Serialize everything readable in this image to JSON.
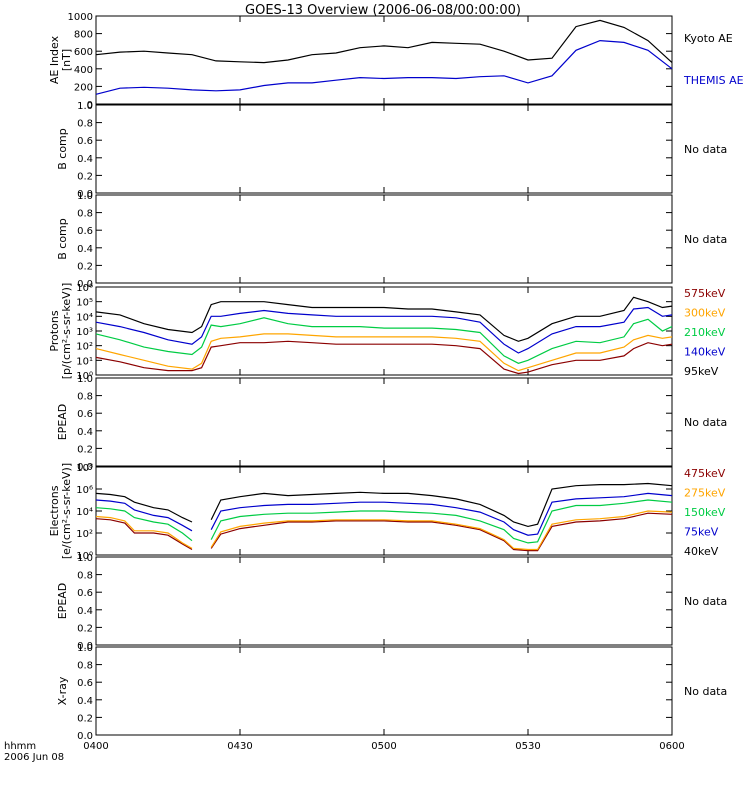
{
  "title": "GOES-13 Overview (2006-06-08/00:00:00)",
  "x_axis": {
    "ticks": [
      "0400",
      "0430",
      "0500",
      "0530",
      "0600"
    ],
    "label_line1": "hhmm",
    "label_line2": "2006 Jun 08"
  },
  "chart_data": [
    {
      "type": "line",
      "ylabel_line1": "AE Index",
      "ylabel_line2": "[nT]",
      "ylim": [
        0,
        1000
      ],
      "yticks": [
        "0",
        "200",
        "400",
        "600",
        "800",
        "1000"
      ],
      "x_minutes": [
        0,
        5,
        10,
        15,
        20,
        25,
        30,
        35,
        40,
        45,
        50,
        55,
        60,
        65,
        70,
        75,
        80,
        85,
        90,
        95,
        100,
        105,
        110,
        115,
        120
      ],
      "series": [
        {
          "name": "Kyoto AE",
          "color": "#000000",
          "values": [
            560,
            590,
            600,
            580,
            560,
            490,
            480,
            470,
            500,
            560,
            580,
            640,
            660,
            640,
            700,
            690,
            680,
            600,
            500,
            520,
            880,
            950,
            870,
            720,
            470
          ]
        },
        {
          "name": "THEMIS AE",
          "color": "#0000cc",
          "values": [
            110,
            180,
            190,
            180,
            160,
            150,
            160,
            210,
            240,
            240,
            270,
            300,
            290,
            300,
            300,
            290,
            310,
            320,
            240,
            320,
            610,
            720,
            700,
            610,
            400
          ]
        }
      ]
    },
    {
      "type": "line",
      "ylabel_line1": "B comp",
      "ylim": [
        0,
        1
      ],
      "yticks": [
        "0.0",
        "0.2",
        "0.4",
        "0.6",
        "0.8",
        "1.0"
      ],
      "note": "No data"
    },
    {
      "type": "line",
      "ylabel_line1": "B comp",
      "ylim": [
        0,
        1
      ],
      "yticks": [
        "0.0",
        "0.2",
        "0.4",
        "0.6",
        "0.8",
        "1.0"
      ],
      "note": "No data"
    },
    {
      "type": "line",
      "ylabel_line1": "Protons",
      "ylabel_line2": "[p/(cm²-s-sr-keV)]",
      "yscale": "log",
      "ylim_log10": [
        0,
        6
      ],
      "yticks": [
        "10⁰",
        "10¹",
        "10²",
        "10³",
        "10⁴",
        "10⁵",
        "10⁶"
      ],
      "x_minutes": [
        0,
        5,
        10,
        15,
        20,
        22,
        24,
        26,
        30,
        35,
        40,
        45,
        50,
        55,
        60,
        65,
        70,
        75,
        80,
        85,
        88,
        90,
        95,
        100,
        105,
        110,
        112,
        115,
        118,
        120
      ],
      "series": [
        {
          "name": "575keV",
          "color": "#8b0000",
          "log10_values": [
            1.2,
            0.9,
            0.5,
            0.3,
            0.3,
            0.5,
            1.9,
            2.0,
            2.2,
            2.2,
            2.3,
            2.2,
            2.1,
            2.1,
            2.1,
            2.1,
            2.1,
            2.0,
            1.8,
            0.4,
            0.1,
            0.2,
            0.7,
            1.0,
            1.0,
            1.3,
            1.8,
            2.2,
            2.0,
            2.1
          ]
        },
        {
          "name": "300keV",
          "color": "#ffa500",
          "log10_values": [
            1.8,
            1.4,
            1.0,
            0.6,
            0.4,
            0.8,
            2.3,
            2.5,
            2.6,
            2.8,
            2.8,
            2.7,
            2.6,
            2.6,
            2.6,
            2.6,
            2.6,
            2.5,
            2.3,
            0.8,
            0.3,
            0.5,
            1.0,
            1.5,
            1.5,
            1.9,
            2.4,
            2.7,
            2.5,
            2.6
          ]
        },
        {
          "name": "210keV",
          "color": "#00cc44",
          "log10_values": [
            2.8,
            2.4,
            1.9,
            1.6,
            1.4,
            1.9,
            3.4,
            3.3,
            3.5,
            3.9,
            3.5,
            3.3,
            3.3,
            3.3,
            3.2,
            3.2,
            3.2,
            3.1,
            2.9,
            1.3,
            0.8,
            1.0,
            1.8,
            2.3,
            2.2,
            2.6,
            3.5,
            3.8,
            3.0,
            3.3
          ]
        },
        {
          "name": "140keV",
          "color": "#0000cc",
          "log10_values": [
            3.6,
            3.3,
            2.9,
            2.4,
            2.1,
            2.6,
            4.0,
            4.0,
            4.2,
            4.4,
            4.2,
            4.1,
            4.0,
            4.0,
            4.0,
            4.0,
            4.0,
            3.9,
            3.6,
            2.1,
            1.5,
            1.8,
            2.8,
            3.3,
            3.3,
            3.6,
            4.5,
            4.6,
            4.0,
            4.1
          ]
        },
        {
          "name": "95keV",
          "color": "#000000",
          "log10_values": [
            4.3,
            4.1,
            3.5,
            3.1,
            2.9,
            3.3,
            4.8,
            5.0,
            5.0,
            5.0,
            4.8,
            4.6,
            4.6,
            4.6,
            4.6,
            4.5,
            4.5,
            4.3,
            4.1,
            2.7,
            2.3,
            2.5,
            3.5,
            4.0,
            4.0,
            4.4,
            5.3,
            5.0,
            4.6,
            4.7
          ]
        }
      ]
    },
    {
      "type": "line",
      "ylabel_line1": "EPEAD",
      "ylim": [
        0,
        1
      ],
      "yticks": [
        "0.0",
        "0.2",
        "0.4",
        "0.6",
        "0.8",
        "1.0"
      ],
      "note": "No data"
    },
    {
      "type": "line",
      "ylabel_line1": "Electrons",
      "ylabel_line2": "[e/(cm²-s-sr-keV)]",
      "yscale": "log",
      "ylim_log10": [
        0,
        8
      ],
      "yticks": [
        "10⁰",
        "10²",
        "10⁴",
        "10⁶",
        "10⁸"
      ],
      "x_minutes": [
        0,
        3,
        6,
        8,
        12,
        15,
        18,
        20,
        22,
        24,
        26,
        30,
        35,
        40,
        45,
        50,
        55,
        60,
        65,
        70,
        75,
        80,
        85,
        87,
        90,
        92,
        95,
        100,
        105,
        110,
        115,
        120
      ],
      "series": [
        {
          "name": "475keV",
          "color": "#8b0000",
          "log10_values": [
            3.3,
            3.2,
            2.9,
            2.0,
            2.0,
            1.8,
            1.0,
            0.5,
            null,
            0.6,
            1.9,
            2.4,
            2.7,
            3.0,
            3.0,
            3.1,
            3.1,
            3.1,
            3.0,
            3.0,
            2.7,
            2.3,
            1.3,
            0.5,
            0.4,
            0.4,
            2.6,
            3.0,
            3.1,
            3.3,
            3.8,
            3.7
          ]
        },
        {
          "name": "275keV",
          "color": "#ffa500",
          "log10_values": [
            3.5,
            3.4,
            3.1,
            2.2,
            2.2,
            2.0,
            1.1,
            0.6,
            null,
            0.7,
            2.1,
            2.6,
            2.9,
            3.1,
            3.1,
            3.2,
            3.2,
            3.2,
            3.1,
            3.1,
            2.8,
            2.4,
            1.4,
            0.6,
            0.5,
            0.5,
            2.8,
            3.2,
            3.3,
            3.5,
            4.0,
            3.9
          ]
        },
        {
          "name": "150keV",
          "color": "#00cc44",
          "log10_values": [
            4.3,
            4.2,
            4.0,
            3.4,
            3.0,
            2.8,
            2.0,
            1.3,
            null,
            1.4,
            3.1,
            3.5,
            3.7,
            3.8,
            3.8,
            3.9,
            4.0,
            4.0,
            3.9,
            3.8,
            3.6,
            3.1,
            2.3,
            1.5,
            1.1,
            1.2,
            4.0,
            4.5,
            4.5,
            4.7,
            5.0,
            4.8
          ]
        },
        {
          "name": "75keV",
          "color": "#0000cc",
          "log10_values": [
            5.0,
            4.9,
            4.7,
            4.1,
            3.6,
            3.4,
            2.7,
            2.2,
            null,
            2.3,
            4.0,
            4.3,
            4.5,
            4.6,
            4.6,
            4.7,
            4.8,
            4.8,
            4.7,
            4.6,
            4.3,
            3.9,
            3.0,
            2.3,
            1.8,
            1.9,
            4.8,
            5.1,
            5.2,
            5.3,
            5.6,
            5.4
          ]
        },
        {
          "name": "40keV",
          "color": "#000000",
          "log10_values": [
            5.6,
            5.5,
            5.3,
            4.8,
            4.3,
            4.1,
            3.4,
            3.0,
            null,
            3.2,
            5.0,
            5.3,
            5.6,
            5.4,
            5.5,
            5.6,
            5.7,
            5.6,
            5.6,
            5.4,
            5.1,
            4.6,
            3.6,
            3.0,
            2.6,
            2.8,
            6.0,
            6.3,
            6.4,
            6.4,
            6.5,
            6.3
          ]
        }
      ]
    },
    {
      "type": "line",
      "ylabel_line1": "EPEAD",
      "ylim": [
        0,
        1
      ],
      "yticks": [
        "0.0",
        "0.2",
        "0.4",
        "0.6",
        "0.8",
        "1.0"
      ],
      "note": "No data"
    },
    {
      "type": "line",
      "ylabel_line1": "X-ray",
      "ylim": [
        0,
        1
      ],
      "yticks": [
        "0.0",
        "0.2",
        "0.4",
        "0.6",
        "0.8",
        "1.0"
      ],
      "note": "No data"
    }
  ]
}
